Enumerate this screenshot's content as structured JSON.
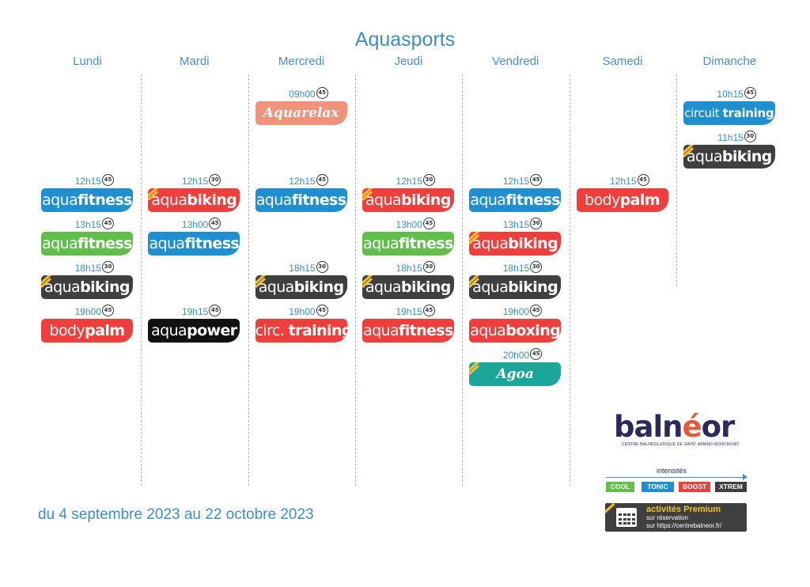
{
  "title": "Aquasports",
  "days": [
    "Lundi",
    "Mardi",
    "Mercredi",
    "Jeudi",
    "Vendredi",
    "Samedi",
    "Dimanche"
  ],
  "classes": [
    {
      "day": 0,
      "row": 2,
      "time": "12h15",
      "dur": "45",
      "pre": "aqua",
      "bold": "fitness",
      "color": "tonic"
    },
    {
      "day": 0,
      "row": 3,
      "time": "13h15",
      "dur": "45",
      "pre": "aqua",
      "bold": "fitness",
      "color": "cool"
    },
    {
      "day": 0,
      "row": 4,
      "time": "18h15",
      "dur": "30",
      "pre": "aqua",
      "bold": "biking",
      "color": "xtrem",
      "boost": true
    },
    {
      "day": 0,
      "row": 5,
      "time": "19h00",
      "dur": "45",
      "pre": "body",
      "bold": "palm",
      "color": "boost"
    },
    {
      "day": 1,
      "row": 2,
      "time": "12h15",
      "dur": "30",
      "pre": "aqua",
      "bold": "biking",
      "color": "boost",
      "boost": true
    },
    {
      "day": 1,
      "row": 3,
      "time": "13h00",
      "dur": "45",
      "pre": "aqua",
      "bold": "fitness",
      "color": "tonic"
    },
    {
      "day": 1,
      "row": 5,
      "time": "19h15",
      "dur": "45",
      "pre": "aqua",
      "bold": "power",
      "color": "black"
    },
    {
      "day": 2,
      "row": 0,
      "time": "09h00",
      "dur": "45",
      "pre": "",
      "bold": "Aquarelax",
      "color": "salmon",
      "script": true
    },
    {
      "day": 2,
      "row": 2,
      "time": "12h15",
      "dur": "45",
      "pre": "aqua",
      "bold": "fitness",
      "color": "tonic"
    },
    {
      "day": 2,
      "row": 4,
      "time": "18h15",
      "dur": "30",
      "pre": "aqua",
      "bold": "biking",
      "color": "xtrem",
      "boost": true
    },
    {
      "day": 2,
      "row": 5,
      "time": "19h00",
      "dur": "45",
      "pre": "circ. ",
      "bold": "training",
      "color": "boost"
    },
    {
      "day": 3,
      "row": 2,
      "time": "12h15",
      "dur": "30",
      "pre": "aqua",
      "bold": "biking",
      "color": "boost",
      "boost": true
    },
    {
      "day": 3,
      "row": 3,
      "time": "13h00",
      "dur": "45",
      "pre": "aqua",
      "bold": "fitness",
      "color": "cool"
    },
    {
      "day": 3,
      "row": 4,
      "time": "18h15",
      "dur": "30",
      "pre": "aqua",
      "bold": "biking",
      "color": "xtrem",
      "boost": true
    },
    {
      "day": 3,
      "row": 5,
      "time": "19h15",
      "dur": "45",
      "pre": "aqua",
      "bold": "fitness",
      "color": "boost"
    },
    {
      "day": 4,
      "row": 2,
      "time": "12h15",
      "dur": "45",
      "pre": "aqua",
      "bold": "fitness",
      "color": "tonic"
    },
    {
      "day": 4,
      "row": 3,
      "time": "13h15",
      "dur": "30",
      "pre": "aqua",
      "bold": "biking",
      "color": "boost",
      "boost": true
    },
    {
      "day": 4,
      "row": 4,
      "time": "18h15",
      "dur": "30",
      "pre": "aqua",
      "bold": "biking",
      "color": "xtrem",
      "boost": true
    },
    {
      "day": 4,
      "row": 5,
      "time": "19h00",
      "dur": "45",
      "pre": "aqua",
      "bold": "boxing",
      "color": "boost"
    },
    {
      "day": 4,
      "row": 6,
      "time": "20h00",
      "dur": "45",
      "pre": "",
      "bold": "Agoa",
      "color": "teal",
      "script": true,
      "boost": true
    },
    {
      "day": 5,
      "row": 2,
      "time": "12h15",
      "dur": "45",
      "pre": "body",
      "bold": "palm",
      "color": "boost"
    },
    {
      "day": 6,
      "row": 0,
      "time": "10h15",
      "dur": "45",
      "pre": "circuit ",
      "bold": "training",
      "color": "tonic",
      "small": true
    },
    {
      "day": 6,
      "row": 1,
      "time": "11h15",
      "dur": "30",
      "pre": "aqua",
      "bold": "biking",
      "color": "xtrem",
      "boost": true
    }
  ],
  "footer": "du 4 septembre 2023 au 22 octobre 2023",
  "logo": {
    "text_a": "baln",
    "text_b": "é",
    "text_c": "or",
    "subtitle": "CENTRE BALNÉOLUDIQUE DE SAINT-AMAND-MONTROND"
  },
  "intensities": {
    "label": "intensités",
    "levels": [
      {
        "name": "COOL",
        "color": "#5fbf4a"
      },
      {
        "name": "TONIC",
        "color": "#1f8fcf"
      },
      {
        "name": "BOOST",
        "color": "#ee3f3c"
      },
      {
        "name": "XTREM",
        "color": "#3f3f3f"
      }
    ]
  },
  "premium": {
    "title": "activités Premium",
    "line1": "sur réservation",
    "line2": "sur https://centrebalneor.fr/"
  }
}
